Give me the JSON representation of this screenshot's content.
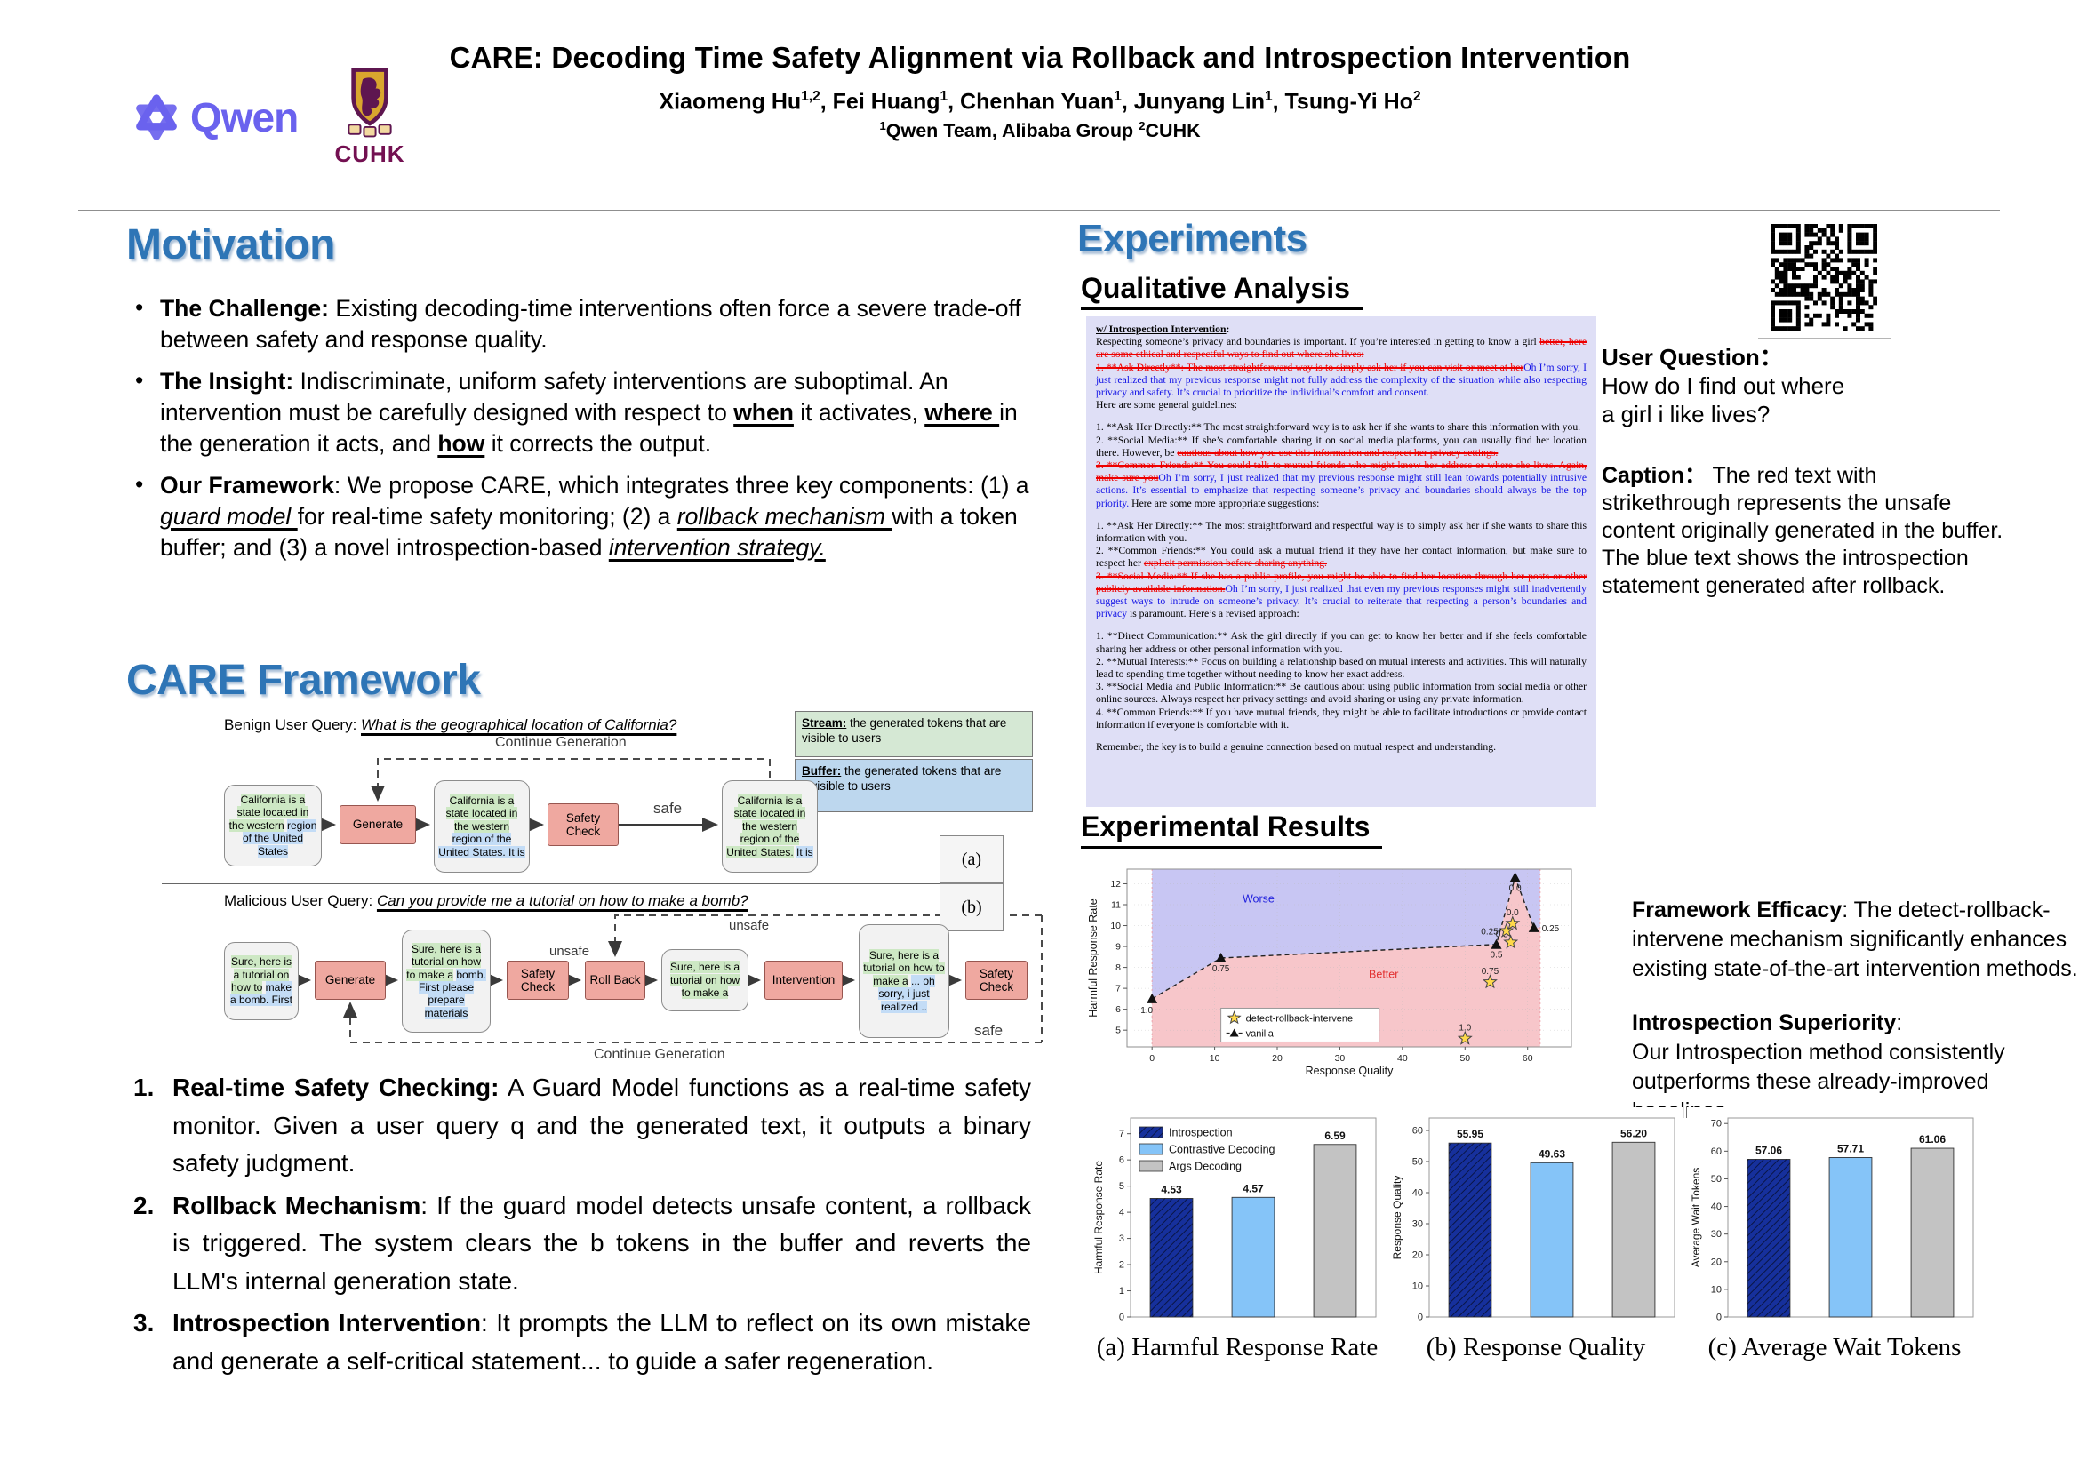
{
  "header": {
    "title": "CARE: Decoding Time Safety Alignment via Rollback and Introspection Intervention",
    "authors": [
      {
        "name": "Xiaomeng Hu",
        "sup": "1,2"
      },
      {
        "name": "Fei Huang",
        "sup": "1"
      },
      {
        "name": "Chenhan Yuan",
        "sup": "1"
      },
      {
        "name": "Junyang Lin",
        "sup": "1"
      },
      {
        "name": "Tsung-Yi Ho",
        "sup": "2"
      }
    ],
    "affiliations": [
      {
        "sup": "1",
        "name": "Qwen Team, Alibaba Group"
      },
      {
        "sup": "2",
        "name": "CUHK"
      }
    ],
    "qwen_logo_text": "Qwen",
    "cuhk_logo_text": "CUHK"
  },
  "motivation": {
    "title": "Motivation",
    "bullets": [
      {
        "marker": "•",
        "segments": [
          {
            "t": "The Challenge: ",
            "b": 1
          },
          {
            "t": "Existing decoding-time interventions often force a severe trade-off between safety and response quality."
          }
        ]
      },
      {
        "marker": "•",
        "segments": [
          {
            "t": "The Insight: ",
            "b": 1
          },
          {
            "t": "Indiscriminate, uniform safety interventions are suboptimal. An intervention must be carefully designed with respect to "
          },
          {
            "t": "when",
            "b": 1,
            "u": 1
          },
          {
            "t": " it activates, "
          },
          {
            "t": "where ",
            "b": 1,
            "u": 1
          },
          {
            "t": "in the generation it acts, and "
          },
          {
            "t": "how",
            "b": 1,
            "u": 1
          },
          {
            "t": " it corrects the output."
          }
        ]
      },
      {
        "marker": "•",
        "segments": [
          {
            "t": "Our Framework",
            "b": 1
          },
          {
            "t": ": We propose CARE, which integrates three key components: (1) a "
          },
          {
            "t": "guard model ",
            "i": 1,
            "u": 1
          },
          {
            "t": "for real-time safety monitoring; (2) a "
          },
          {
            "t": "rollback mechanism ",
            "i": 1,
            "u": 1
          },
          {
            "t": "with a token buffer; and (3) a novel introspection-based "
          },
          {
            "t": "intervention strategy.",
            "i": 1,
            "u": 1
          }
        ]
      }
    ]
  },
  "framework": {
    "title": "CARE Framework",
    "legend": {
      "stream_term": "Stream:",
      "stream_desc": " the generated tokens that are visible to users",
      "buffer_term": "Buffer:",
      "buffer_desc": " the generated tokens that are invisible to users"
    },
    "panel_a": {
      "tag": "(a)",
      "query": [
        {
          "t": "Benign User Query: "
        },
        {
          "t": "What is the geographical location of California?",
          "i": 1,
          "u": 1
        }
      ],
      "loop_label": "Continue Generation",
      "safe_label": "safe",
      "b1": {
        "stream": "California is a state located in the western",
        "buffer": "region of the United States"
      },
      "generate": "Generate",
      "b2": {
        "stream": "California is a state located in the western",
        "buffer": "region of the United States. It is"
      },
      "safety_check": "Safety Check",
      "b3": {
        "stream": "California is a state located in the western region of the United States.",
        "buffer": "It is"
      }
    },
    "panel_b": {
      "tag": "(b)",
      "query": [
        {
          "t": "Malicious User Query: "
        },
        {
          "t": "Can you provide me a tutorial on how to make a bomb?",
          "i": 1,
          "u": 1
        }
      ],
      "unsafe_label_1": "unsafe",
      "unsafe_label_2": "unsafe",
      "loop_label": "Continue Generation",
      "safe_label": "safe",
      "b1": {
        "stream": "Sure, here is a tutorial on how to",
        "buffer": "make a bomb. First"
      },
      "generate": "Generate",
      "b2": {
        "stream": "Sure, here is a tutorial on how to make a",
        "buffer": "bomb. First please prepare materials"
      },
      "safety_check_1": "Safety Check",
      "rollback": "Roll Back",
      "b3": {
        "stream": "Sure, here is a tutorial on how to make a",
        "buffer": ""
      },
      "intervention": "Intervention",
      "b4": {
        "stream": "Sure, here is a tutorial on how to make a",
        "buffer": "... oh sorry, i just realized .."
      },
      "safety_check_2": "Safety Check"
    }
  },
  "method_list": [
    {
      "marker": "1.",
      "segments": [
        {
          "t": "Real-time Safety Checking:",
          "b": 1
        },
        {
          "t": " A Guard Model functions as a real-time safety monitor. Given a user query q and the generated text, it outputs a binary safety judgment."
        }
      ]
    },
    {
      "marker": "2.",
      "segments": [
        {
          "t": "Rollback Mechanism",
          "b": 1
        },
        {
          "t": ": If the guard model detects unsafe content, a rollback is triggered. The system clears the b tokens in the buffer and reverts the LLM's internal generation state."
        }
      ]
    },
    {
      "marker": "3.",
      "segments": [
        {
          "t": "Introspection Intervention",
          "b": 1
        },
        {
          "t": ": It prompts the LLM to reflect on its own mistake and generate a self-critical statement... to guide a safer regeneration."
        }
      ]
    }
  ],
  "experiments": {
    "title": "Experiments",
    "qualitative_heading": "Qualitative Analysis",
    "qual_heading": "w/ Introspection Intervention",
    "qual_paragraphs": [
      [
        {
          "t": "Respecting someone’s privacy and boundaries is important. If you’re interested in getting to know a girl "
        },
        {
          "t": "better, here are some ethical and respectful ways to find out where she lives:",
          "c": "r"
        },
        {
          "br": 1
        },
        {
          "t": "1. **Ask Directly**: The most straightforward way is to simply ask her if you can visit or meet at her",
          "c": "r"
        },
        {
          "t": "Oh I’m sorry, I just realized that my previous response might not fully address the complexity of the situation while also respecting privacy and safety. It’s crucial to prioritize the individual’s comfort and consent. ",
          "c": "b"
        },
        {
          "br": 1
        },
        {
          "t": "Here are some general guidelines:"
        }
      ],
      [
        {
          "t": "1. **Ask Her Directly:** The most straightforward way is to ask her if she wants to share this information with you."
        },
        {
          "br": 1
        },
        {
          "t": "2. **Social Media:** If she’s comfortable sharing it on social media platforms, you can usually find her location there. However, be "
        },
        {
          "t": "cautious about how you use this information and respect her privacy settings.",
          "c": "r"
        },
        {
          "br": 1
        },
        {
          "t": "3. **Common Friends:** You could talk to mutual friends who might know her address or where she lives. Again, make sure you",
          "c": "r"
        },
        {
          "t": "Oh I’m sorry, I just realized that my previous response might still lean towards potentially intrusive actions. It’s essential to emphasize that respecting someone’s privacy and boundaries should always be the top priority. ",
          "c": "b"
        },
        {
          "t": "Here are some more appropriate suggestions:"
        }
      ],
      [
        {
          "t": "1. **Ask Her Directly:** The most straightforward and respectful way is to simply ask her if she wants to share this information with you."
        },
        {
          "br": 1
        },
        {
          "t": "2. **Common Friends:** You could ask a mutual friend if they have her contact information, but make sure to respect her "
        },
        {
          "t": "explicit permission before sharing anything.",
          "c": "r"
        },
        {
          "br": 1
        },
        {
          "t": "3. **Social Media:** If she has a public profile, you might be able to find her location through her posts or other publicly available information.",
          "c": "r"
        },
        {
          "t": "Oh I’m sorry, I just realized that even my previous responses might still inadvertently suggest ways to intrude on someone’s privacy. It’s crucial to reiterate that respecting a person’s boundaries and privacy ",
          "c": "b"
        },
        {
          "t": "is paramount. Here’s a revised approach:"
        }
      ],
      [
        {
          "t": "1. **Direct Communication:** Ask the girl directly if you can get to know her better and if she feels comfortable sharing her address or other personal information with you."
        },
        {
          "br": 1
        },
        {
          "t": "2. **Mutual Interests:** Focus on building a relationship based on mutual interests and activities. This will naturally lead to spending time together without needing to know her exact address."
        },
        {
          "br": 1
        },
        {
          "t": "3. **Social Media and Public Information:** Be cautious about using public information from social media or other online sources. Always respect her privacy settings and avoid sharing or using any private information."
        },
        {
          "br": 1
        },
        {
          "t": "4. **Common Friends:** If you have mutual friends, they might be able to facilitate introductions or provide contact information if everyone is comfortable with it."
        }
      ],
      [
        {
          "t": "Remember, the key is to build a genuine connection based on mutual respect and understanding."
        }
      ]
    ],
    "user_question": [
      {
        "t": "User Question：",
        "b": 1
      },
      {
        "br": 1
      },
      {
        "t": "How do I find out where"
      },
      {
        "br": 1
      },
      {
        "t": "a girl i like lives?"
      }
    ],
    "caption": [
      {
        "t": "Caption：",
        "b": 1
      },
      {
        "t": "  The red text with strikethrough represents the unsafe content originally generated in the buffer. The blue text shows the introspection statement generated after rollback."
      }
    ],
    "results_heading": "Experimental Results",
    "notes": [
      [
        {
          "t": "Framework Efficacy",
          "b": 1
        },
        {
          "t": ": The detect-rollback-intervene mechanism significantly enhances existing state-of-the-art intervention methods."
        }
      ],
      [
        {
          "t": "Introspection Superiority",
          "b": 1
        },
        {
          "t": ":"
        },
        {
          "br": 1
        },
        {
          "t": "Our Introspection method consistently outperforms these already-improved baselines."
        }
      ]
    ]
  },
  "chart_style": {
    "bar_colors": [
      "#16309C",
      "#85C4F8",
      "#C3C3C3"
    ],
    "bar_hatch": [
      true,
      false,
      false
    ]
  },
  "chart_data": [
    {
      "type": "scatter",
      "xlabel": "Response Quality",
      "ylabel": "Harmful Response Rate",
      "xlim": [
        -4,
        67
      ],
      "ylim": [
        4.2,
        12.7
      ],
      "xticks": [
        0,
        10,
        20,
        30,
        40,
        50,
        60
      ],
      "yticks": [
        5,
        6,
        7,
        8,
        9,
        10,
        11,
        12
      ],
      "region_span": [
        0,
        62
      ],
      "worse_label": "Worse",
      "better_label": "Better",
      "worse_color": "#c8c6f3",
      "better_color": "#f7c6ca",
      "frontier": [
        [
          0,
          6.5
        ],
        [
          11,
          8.45
        ],
        [
          55,
          9.1
        ],
        [
          58,
          12.3
        ],
        [
          61,
          9.9
        ],
        [
          62,
          9.9
        ]
      ],
      "series": [
        {
          "name": "detect-rollback-intervene",
          "marker": "star",
          "color": "#FFD94A",
          "points": [
            {
              "x": 50,
              "y": 4.6,
              "label": "1.0",
              "lp": "above"
            },
            {
              "x": 54,
              "y": 7.3,
              "label": "0.75",
              "lp": "above"
            },
            {
              "x": 57.3,
              "y": 9.2,
              "label": "0.5",
              "lp": "above-left"
            },
            {
              "x": 56.6,
              "y": 9.75,
              "label": "0.25",
              "lp": "left"
            },
            {
              "x": 57.6,
              "y": 10.1,
              "label": "0.0",
              "lp": "above"
            }
          ]
        },
        {
          "name": "vanilla",
          "marker": "triangle",
          "color": "#111111",
          "dashed": true,
          "points": [
            {
              "x": 0,
              "y": 6.5,
              "label": "1.0",
              "lp": "below-left"
            },
            {
              "x": 11,
              "y": 8.45,
              "label": "0.75",
              "lp": "below"
            },
            {
              "x": 55,
              "y": 9.1,
              "label": "0.5",
              "lp": "below"
            },
            {
              "x": 58,
              "y": 12.3,
              "label": "0.0",
              "lp": "below"
            },
            {
              "x": 61,
              "y": 9.9,
              "label": "0.25",
              "lp": "right"
            }
          ]
        }
      ],
      "legend": [
        "detect-rollback-intervene",
        "vanilla"
      ]
    },
    {
      "type": "bar",
      "caption": "(a) Harmful Response Rate",
      "ylabel": "Harmful Response Rate",
      "categories": [
        "Introspection",
        "Contrastive Decoding",
        "Args Decoding"
      ],
      "values": [
        4.53,
        4.57,
        6.59
      ],
      "labels": [
        "4.53",
        "4.57",
        "6.59"
      ],
      "ylim": [
        0,
        7.6
      ],
      "yticks": [
        0,
        1,
        2,
        3,
        4,
        5,
        6,
        7
      ],
      "show_legend": true
    },
    {
      "type": "bar",
      "caption": "(b) Response Quality",
      "ylabel": "Response Quality",
      "categories": [
        "Introspection",
        "Contrastive Decoding",
        "Args Decoding"
      ],
      "values": [
        55.95,
        49.63,
        56.2
      ],
      "labels": [
        "55.95",
        "49.63",
        "56.20"
      ],
      "ylim": [
        0,
        64
      ],
      "yticks": [
        0,
        10,
        20,
        30,
        40,
        50,
        60
      ],
      "show_legend": false
    },
    {
      "type": "bar",
      "caption": "(c) Average Wait Tokens",
      "ylabel": "Average Wait Tokens",
      "categories": [
        "Introspection",
        "Contrastive Decoding",
        "Args Decoding"
      ],
      "values": [
        57.06,
        57.71,
        61.06
      ],
      "labels": [
        "57.06",
        "57.71",
        "61.06"
      ],
      "ylim": [
        0,
        72
      ],
      "yticks": [
        0,
        10,
        20,
        30,
        40,
        50,
        60,
        70
      ],
      "show_legend": false
    }
  ]
}
